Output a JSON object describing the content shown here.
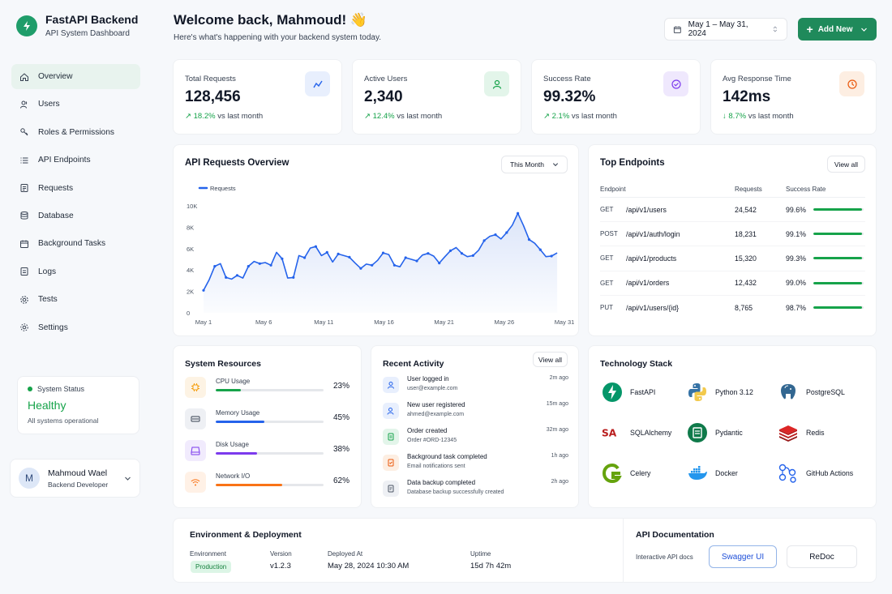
{
  "app": {
    "title": "FastAPI Backend",
    "subtitle": "API System Dashboard"
  },
  "nav": [
    {
      "label": "Overview",
      "icon": "home-icon",
      "active": true
    },
    {
      "label": "Users",
      "icon": "users-icon"
    },
    {
      "label": "Roles & Permissions",
      "icon": "key-icon"
    },
    {
      "label": "API Endpoints",
      "icon": "list-icon"
    },
    {
      "label": "Requests",
      "icon": "file-icon"
    },
    {
      "label": "Database",
      "icon": "database-icon"
    },
    {
      "label": "Background Tasks",
      "icon": "calendar-icon"
    },
    {
      "label": "Logs",
      "icon": "log-icon"
    },
    {
      "label": "Tests",
      "icon": "gear-icon"
    },
    {
      "label": "Settings",
      "icon": "settings-icon"
    }
  ],
  "system_status": {
    "label": "System Status",
    "value": "Healthy",
    "desc": "All systems operational"
  },
  "user": {
    "initial": "M",
    "name": "Mahmoud Wael",
    "role": "Backend Developer"
  },
  "header": {
    "title": "Welcome back, Mahmoud! 👋",
    "subtitle": "Here's what's happening with your backend system today.",
    "date_range": "May 1 – May 31, 2024",
    "add_label": "Add New"
  },
  "kpis": [
    {
      "label": "Total Requests",
      "value": "128,456",
      "trend": "18.2%",
      "arrow": "↗",
      "suffix": "vs last month",
      "icon": "trend-icon",
      "color": "#2563eb",
      "bg": "#e8effd"
    },
    {
      "label": "Active Users",
      "value": "2,340",
      "trend": "12.4%",
      "arrow": "↗",
      "suffix": "vs last month",
      "icon": "user-icon",
      "color": "#16a34a",
      "bg": "#e3f5ea"
    },
    {
      "label": "Success Rate",
      "value": "99.32%",
      "trend": "2.1%",
      "arrow": "↗",
      "suffix": "vs last month",
      "icon": "check-circle-icon",
      "color": "#7c3aed",
      "bg": "#efe8fd"
    },
    {
      "label": "Avg Response Time",
      "value": "142ms",
      "trend": "8.7%",
      "arrow": "↓",
      "suffix": "vs last month",
      "icon": "clock-icon",
      "color": "#ea580c",
      "bg": "#fdeee2"
    }
  ],
  "requests_chart": {
    "title": "API Requests Overview",
    "filter": "This Month"
  },
  "chart_data": {
    "type": "line",
    "series": [
      {
        "name": "Requests",
        "values": [
          2100,
          3100,
          4350,
          4600,
          3300,
          3150,
          3500,
          3250,
          4350,
          4800,
          4600,
          4700,
          4450,
          5650,
          5050,
          3250,
          3300,
          5350,
          5150,
          6050,
          6200,
          5350,
          5650,
          4750,
          5500,
          5350,
          5200,
          4650,
          4150,
          4550,
          4450,
          4900,
          5600,
          5450,
          4450,
          4300,
          5150,
          5000,
          4850,
          5400,
          5550,
          5300,
          4650,
          5250,
          5800,
          6100,
          5550,
          5250,
          5350,
          5850,
          6750,
          7150,
          7300,
          6900,
          7500,
          8200,
          9300,
          8150,
          6850,
          6500,
          5900,
          5250,
          5300,
          5600
        ]
      }
    ],
    "x": [
      1,
      1.47,
      1.93,
      2.4,
      2.87,
      3.33,
      3.8,
      4.27,
      4.73,
      5.2,
      5.67,
      6.13,
      6.6,
      7.07,
      7.53,
      8,
      8.47,
      8.93,
      9.4,
      9.87,
      10.33,
      10.8,
      11.27,
      11.73,
      12.2,
      12.67,
      13.13,
      13.6,
      14.07,
      14.53,
      15,
      15.47,
      15.93,
      16.4,
      16.87,
      17.33,
      17.8,
      18.27,
      18.73,
      19.2,
      19.67,
      20.13,
      20.6,
      21.07,
      21.53,
      22,
      22.47,
      22.93,
      23.4,
      23.87,
      24.33,
      24.8,
      25.27,
      25.73,
      26.2,
      26.67,
      27.13,
      27.6,
      28.07,
      28.53,
      29,
      29.47,
      29.93,
      30.4
    ],
    "xticks": [
      "May 1",
      "May 6",
      "May 11",
      "May 16",
      "May 21",
      "May 26",
      "May 31"
    ],
    "xtick_values": [
      1,
      6,
      11,
      16,
      21,
      26,
      31
    ],
    "yticks": [
      "0",
      "2K",
      "4K",
      "6K",
      "8K",
      "10K"
    ],
    "ylim": [
      0,
      10000
    ],
    "legend": "top-left"
  },
  "top_endpoints": {
    "title": "Top Endpoints",
    "view_all": "View all",
    "headers": [
      "Endpoint",
      "Requests",
      "Success Rate"
    ],
    "rows": [
      {
        "method": "GET",
        "path": "/api/v1/users",
        "requests": "24,542",
        "rate": "99.6%",
        "pct": 0.96
      },
      {
        "method": "POST",
        "path": "/api/v1/auth/login",
        "requests": "18,231",
        "rate": "99.1%",
        "pct": 0.96
      },
      {
        "method": "GET",
        "path": "/api/v1/products",
        "requests": "15,320",
        "rate": "99.3%",
        "pct": 0.96
      },
      {
        "method": "GET",
        "path": "/api/v1/orders",
        "requests": "12,432",
        "rate": "99.0%",
        "pct": 0.96
      },
      {
        "method": "PUT",
        "path": "/api/v1/users/{id}",
        "requests": "8,765",
        "rate": "98.7%",
        "pct": 0.96
      }
    ]
  },
  "resources": {
    "title": "System Resources",
    "items": [
      {
        "label": "CPU Usage",
        "value": "23%",
        "pct": 0.23,
        "color": "#16a34a",
        "bg": "#fdf3e4",
        "icon": "cpu-icon",
        "iconColor": "#f59e0b"
      },
      {
        "label": "Memory Usage",
        "value": "45%",
        "pct": 0.45,
        "color": "#2563eb",
        "bg": "#eef0f4",
        "icon": "memory-icon",
        "iconColor": "#374151"
      },
      {
        "label": "Disk Usage",
        "value": "38%",
        "pct": 0.38,
        "color": "#7c3aed",
        "bg": "#f1ebfd",
        "icon": "disk-icon",
        "iconColor": "#7c3aed"
      },
      {
        "label": "Network I/O",
        "value": "62%",
        "pct": 0.62,
        "color": "#f97316",
        "bg": "#fff1e6",
        "icon": "network-icon",
        "iconColor": "#f97316"
      }
    ]
  },
  "activity": {
    "title": "Recent Activity",
    "view_all": "View all",
    "items": [
      {
        "title": "User logged in",
        "sub": "user@example.com",
        "time": "2m ago",
        "icon": "user-icon",
        "color": "#2563eb",
        "bg": "#e8effd"
      },
      {
        "title": "New user registered",
        "sub": "ahmed@example.com",
        "time": "15m ago",
        "icon": "user-add-icon",
        "color": "#2563eb",
        "bg": "#e8effd"
      },
      {
        "title": "Order created",
        "sub": "Order #ORD-12345",
        "time": "32m ago",
        "icon": "order-icon",
        "color": "#16a34a",
        "bg": "#e3f5ea"
      },
      {
        "title": "Background task completed",
        "sub": "Email notifications sent",
        "time": "1h ago",
        "icon": "task-icon",
        "color": "#ea580c",
        "bg": "#fdeee2"
      },
      {
        "title": "Data backup completed",
        "sub": "Database backup successfully created",
        "time": "2h ago",
        "icon": "backup-icon",
        "color": "#4b5563",
        "bg": "#eef0f4"
      }
    ]
  },
  "tech_stack": {
    "title": "Technology Stack",
    "items": [
      {
        "label": "FastAPI",
        "icon": "fastapi-icon"
      },
      {
        "label": "Python 3.12",
        "icon": "python-icon"
      },
      {
        "label": "PostgreSQL",
        "icon": "postgresql-icon"
      },
      {
        "label": "SQLAlchemy",
        "icon": "sqlalchemy-icon",
        "logo_text": "SA"
      },
      {
        "label": "Pydantic",
        "icon": "pydantic-icon"
      },
      {
        "label": "Redis",
        "icon": "redis-icon"
      },
      {
        "label": "Celery",
        "icon": "celery-icon"
      },
      {
        "label": "Docker",
        "icon": "docker-icon"
      },
      {
        "label": "GitHub Actions",
        "icon": "github-actions-icon"
      }
    ]
  },
  "environment": {
    "title": "Environment & Deployment",
    "env_label": "Environment",
    "env_value": "Production",
    "version_label": "Version",
    "version_value": "v1.2.3",
    "deployed_label": "Deployed At",
    "deployed_value": "May 28, 2024 10:30 AM",
    "uptime_label": "Uptime",
    "uptime_value": "15d 7h 42m"
  },
  "docs": {
    "title": "API Documentation",
    "label": "Interactive API docs",
    "swagger": "Swagger UI",
    "redoc": "ReDoc"
  }
}
